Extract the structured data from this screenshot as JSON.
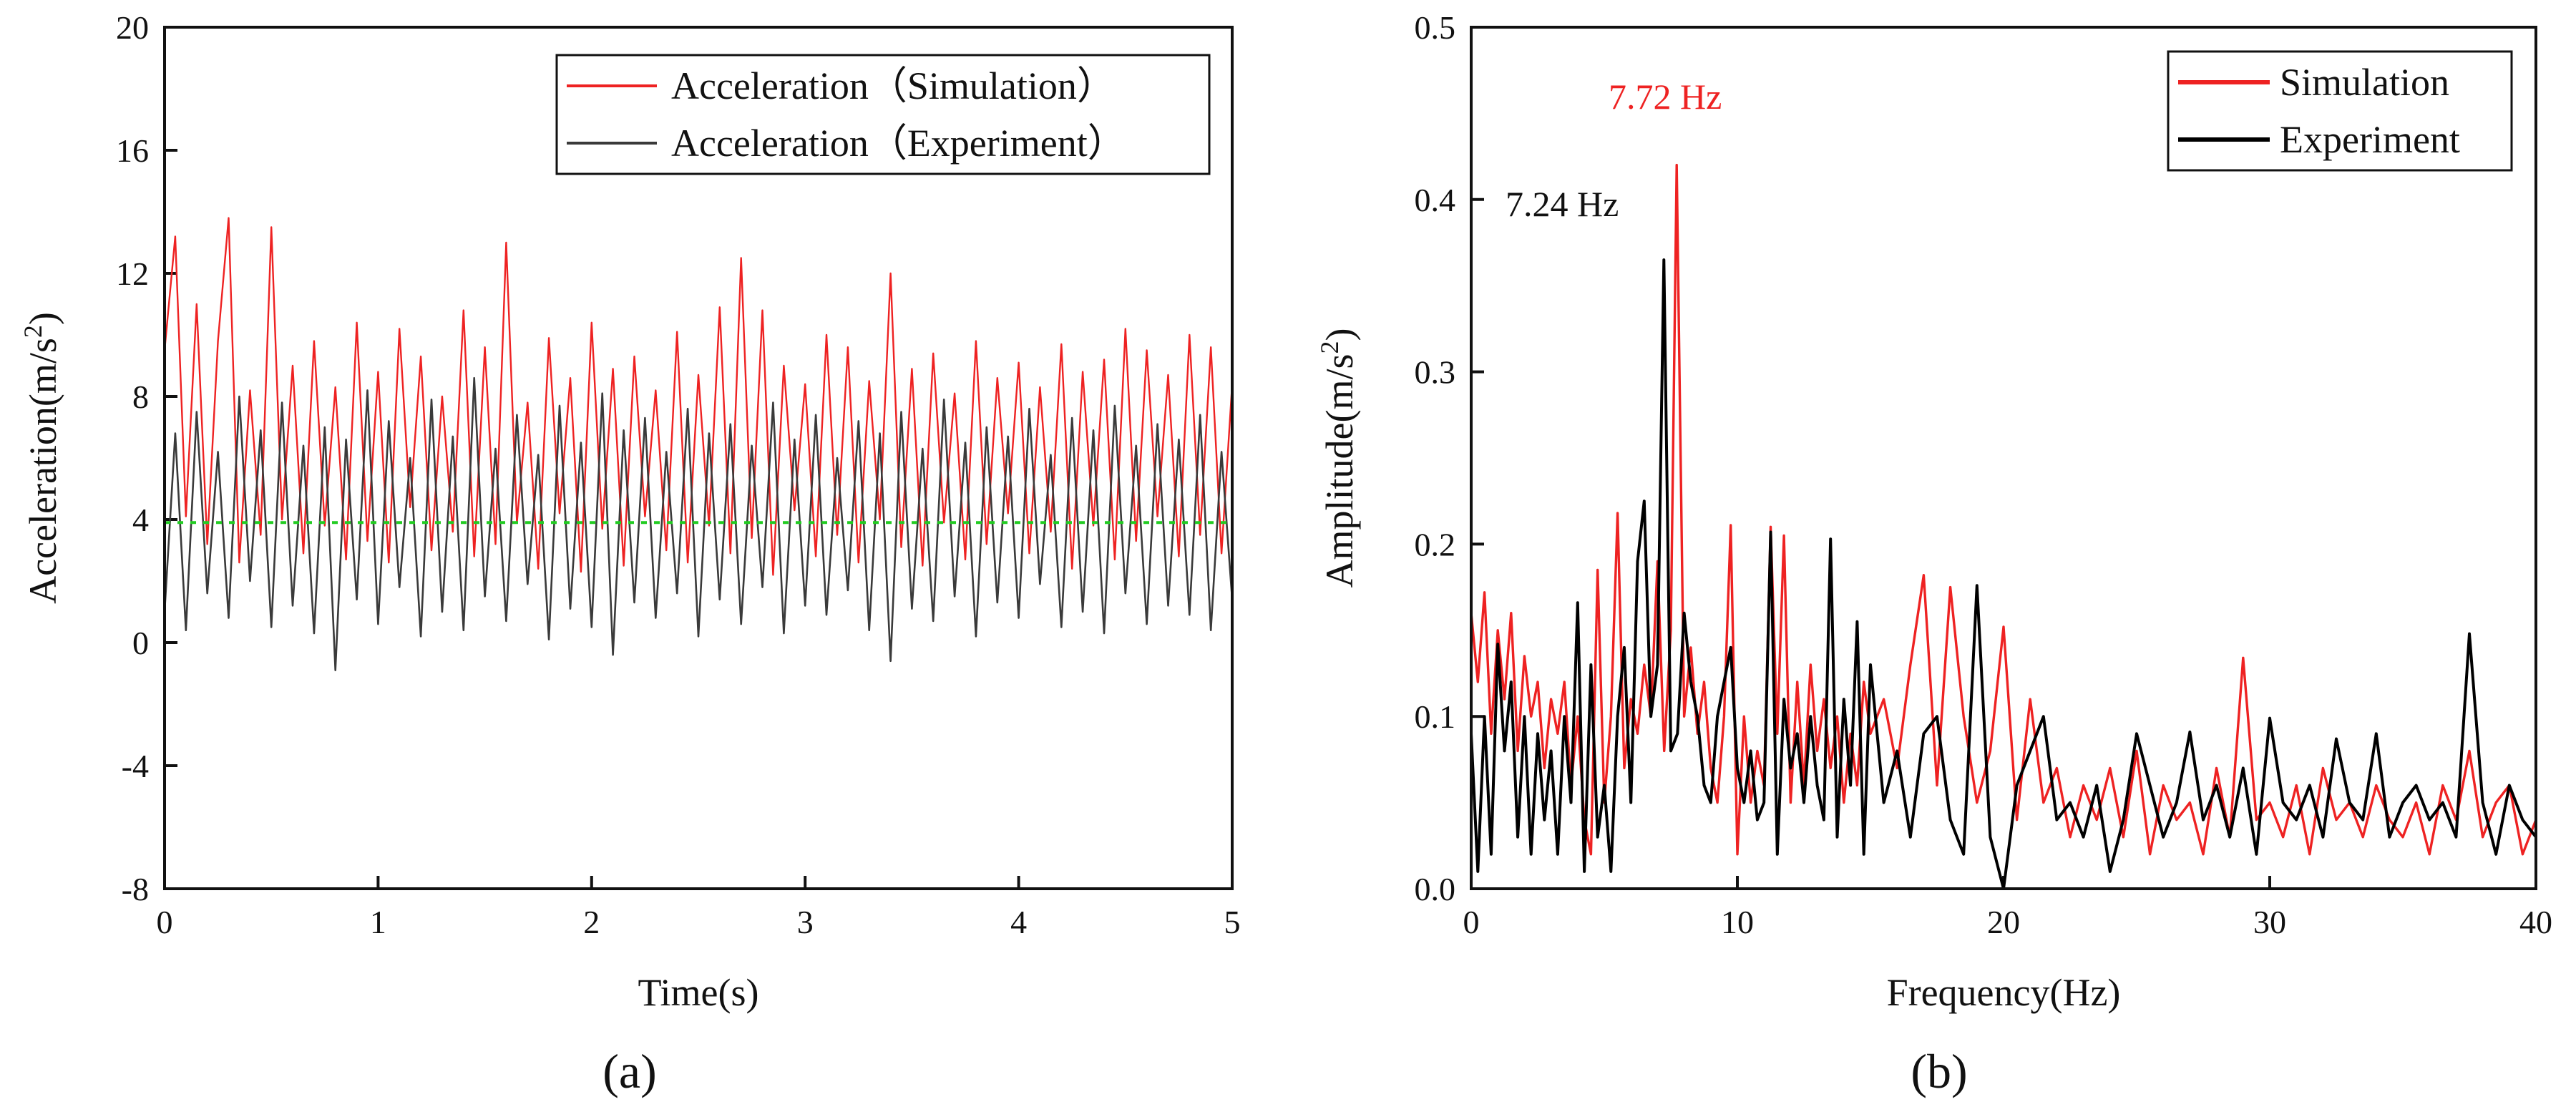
{
  "panel_labels": {
    "a": "(a)",
    "b": "(b)"
  },
  "colors": {
    "simulation": "#ee2222",
    "experiment_a": "#3a3a3a",
    "experiment_b": "#000000",
    "mean_line": "#22cc22",
    "axis": "#111111"
  },
  "chart_data": [
    {
      "id": "a",
      "type": "line",
      "title": "",
      "xlabel": "Time(s)",
      "ylabel": "Acceleration(m/s²)",
      "xlim": [
        0,
        5
      ],
      "ylim": [
        -8,
        20
      ],
      "xticks": [
        0,
        1,
        2,
        3,
        4,
        5
      ],
      "yticks": [
        -8,
        -4,
        0,
        4,
        8,
        12,
        16,
        20
      ],
      "legend_position": "top-right",
      "reference_line": {
        "y": 3.9,
        "style": "dotted"
      },
      "series": [
        {
          "name": "Acceleration（Simulation）",
          "color": "#ee2222",
          "x": [
            0,
            0.05,
            0.1,
            0.15,
            0.2,
            0.25,
            0.3,
            0.35,
            0.4,
            0.45,
            0.5,
            0.55,
            0.6,
            0.65,
            0.7,
            0.75,
            0.8,
            0.85,
            0.9,
            0.95,
            1.0,
            1.05,
            1.1,
            1.15,
            1.2,
            1.25,
            1.3,
            1.35,
            1.4,
            1.45,
            1.5,
            1.55,
            1.6,
            1.65,
            1.7,
            1.75,
            1.8,
            1.85,
            1.9,
            1.95,
            2.0,
            2.05,
            2.1,
            2.15,
            2.2,
            2.25,
            2.3,
            2.35,
            2.4,
            2.45,
            2.5,
            2.55,
            2.6,
            2.65,
            2.7,
            2.75,
            2.8,
            2.85,
            2.9,
            2.95,
            3.0,
            3.05,
            3.1,
            3.15,
            3.2,
            3.25,
            3.3,
            3.35,
            3.4,
            3.45,
            3.5,
            3.55,
            3.6,
            3.65,
            3.7,
            3.75,
            3.8,
            3.85,
            3.9,
            3.95,
            4.0,
            4.05,
            4.1,
            4.15,
            4.2,
            4.25,
            4.3,
            4.35,
            4.4,
            4.45,
            4.5,
            4.55,
            4.6,
            4.65,
            4.7,
            4.75,
            4.8,
            4.85,
            4.9,
            4.95,
            5.0
          ],
          "y": [
            9.5,
            13.2,
            4.1,
            11.0,
            3.2,
            9.8,
            13.8,
            2.6,
            8.2,
            3.5,
            13.5,
            4.0,
            9.0,
            2.9,
            9.8,
            3.8,
            8.3,
            2.7,
            10.4,
            3.3,
            8.8,
            2.6,
            10.2,
            4.4,
            9.3,
            3.0,
            8.0,
            3.6,
            10.8,
            2.8,
            9.6,
            3.2,
            13.0,
            3.9,
            7.8,
            2.4,
            9.9,
            4.2,
            8.6,
            2.3,
            10.4,
            3.7,
            8.9,
            2.5,
            9.3,
            4.1,
            8.2,
            3.0,
            10.1,
            2.6,
            8.7,
            3.8,
            10.9,
            2.9,
            12.5,
            3.4,
            10.8,
            2.2,
            9.0,
            4.3,
            8.4,
            2.8,
            10.0,
            3.5,
            9.6,
            2.6,
            8.5,
            4.0,
            12.0,
            3.1,
            8.9,
            2.5,
            9.4,
            3.9,
            8.1,
            2.7,
            9.8,
            3.2,
            8.6,
            4.2,
            9.1,
            2.9,
            8.3,
            3.6,
            9.7,
            2.4,
            8.8,
            3.8,
            9.2,
            2.7,
            10.2,
            3.3,
            9.5,
            4.1,
            8.7,
            2.8,
            10.0,
            3.5,
            9.6,
            2.9,
            8.4
          ]
        },
        {
          "name": "Acceleration（Experiment）",
          "color": "#3a3a3a",
          "x": [
            0,
            0.05,
            0.1,
            0.15,
            0.2,
            0.25,
            0.3,
            0.35,
            0.4,
            0.45,
            0.5,
            0.55,
            0.6,
            0.65,
            0.7,
            0.75,
            0.8,
            0.85,
            0.9,
            0.95,
            1.0,
            1.05,
            1.1,
            1.15,
            1.2,
            1.25,
            1.3,
            1.35,
            1.4,
            1.45,
            1.5,
            1.55,
            1.6,
            1.65,
            1.7,
            1.75,
            1.8,
            1.85,
            1.9,
            1.95,
            2.0,
            2.05,
            2.1,
            2.15,
            2.2,
            2.25,
            2.3,
            2.35,
            2.4,
            2.45,
            2.5,
            2.55,
            2.6,
            2.65,
            2.7,
            2.75,
            2.8,
            2.85,
            2.9,
            2.95,
            3.0,
            3.05,
            3.1,
            3.15,
            3.2,
            3.25,
            3.3,
            3.35,
            3.4,
            3.45,
            3.5,
            3.55,
            3.6,
            3.65,
            3.7,
            3.75,
            3.8,
            3.85,
            3.9,
            3.95,
            4.0,
            4.05,
            4.1,
            4.15,
            4.2,
            4.25,
            4.3,
            4.35,
            4.4,
            4.45,
            4.5,
            4.55,
            4.6,
            4.65,
            4.7,
            4.75,
            4.8,
            4.85,
            4.9,
            4.95,
            5.0
          ],
          "y": [
            1.0,
            6.8,
            0.4,
            7.5,
            1.6,
            6.2,
            0.8,
            8.0,
            2.0,
            6.9,
            0.5,
            7.8,
            1.2,
            6.4,
            0.3,
            7.0,
            -0.9,
            6.6,
            1.4,
            8.2,
            0.6,
            7.2,
            1.8,
            6.0,
            0.2,
            7.9,
            1.0,
            6.7,
            0.4,
            8.6,
            1.5,
            6.3,
            0.7,
            7.4,
            1.9,
            6.1,
            0.1,
            7.7,
            1.1,
            6.5,
            0.5,
            8.1,
            -0.4,
            6.9,
            1.3,
            7.3,
            0.8,
            6.2,
            1.6,
            7.6,
            0.2,
            6.8,
            1.4,
            7.1,
            0.6,
            6.4,
            1.8,
            7.8,
            0.3,
            6.6,
            1.2,
            7.4,
            0.9,
            6.0,
            1.7,
            7.2,
            0.4,
            6.8,
            -0.6,
            7.5,
            1.1,
            6.3,
            0.7,
            7.9,
            1.5,
            6.5,
            0.2,
            7.0,
            1.3,
            6.7,
            0.8,
            7.6,
            1.9,
            6.1,
            0.5,
            7.3,
            1.0,
            6.9,
            0.3,
            7.7,
            1.6,
            6.4,
            0.6,
            7.1,
            1.2,
            6.6,
            0.9,
            7.4,
            0.4,
            6.2,
            1.4
          ]
        }
      ]
    },
    {
      "id": "b",
      "type": "line",
      "title": "",
      "xlabel": "Frequency(Hz)",
      "ylabel": "Amplitude(m/s²)",
      "xlim": [
        0,
        40
      ],
      "ylim": [
        0,
        0.5
      ],
      "xticks": [
        0,
        10,
        20,
        30,
        40
      ],
      "yticks": [
        0.0,
        0.1,
        0.2,
        0.3,
        0.4,
        0.5
      ],
      "ytick_labels": [
        "0.0",
        "0.1",
        "0.2",
        "0.3",
        "0.4",
        "0.5"
      ],
      "legend_position": "top-right",
      "annotations": [
        {
          "text": "7.72 Hz",
          "x": 7.72,
          "y": 0.42,
          "color": "#ee2222"
        },
        {
          "text": "7.24 Hz",
          "x": 7.24,
          "y": 0.365,
          "color": "#111111"
        }
      ],
      "series": [
        {
          "name": "Simulation",
          "color": "#ee2222",
          "x": [
            0,
            0.25,
            0.5,
            0.75,
            1.0,
            1.25,
            1.5,
            1.75,
            2.0,
            2.25,
            2.5,
            2.75,
            3.0,
            3.25,
            3.5,
            3.75,
            4.0,
            4.25,
            4.5,
            4.75,
            5.0,
            5.25,
            5.5,
            5.75,
            6.0,
            6.25,
            6.5,
            6.75,
            7.0,
            7.25,
            7.5,
            7.72,
            8.0,
            8.25,
            8.5,
            8.75,
            9.0,
            9.25,
            9.5,
            9.75,
            10.0,
            10.25,
            10.5,
            10.75,
            11.0,
            11.25,
            11.5,
            11.75,
            12.0,
            12.25,
            12.5,
            12.75,
            13.0,
            13.25,
            13.5,
            13.75,
            14.0,
            14.25,
            14.5,
            14.75,
            15.0,
            15.5,
            16.0,
            16.5,
            17.0,
            17.5,
            18.0,
            18.5,
            19.0,
            19.5,
            20.0,
            20.5,
            21.0,
            21.5,
            22.0,
            22.5,
            23.0,
            23.5,
            24.0,
            24.5,
            25.0,
            25.5,
            26.0,
            26.5,
            27.0,
            27.5,
            28.0,
            28.5,
            29.0,
            29.5,
            30.0,
            30.5,
            31.0,
            31.5,
            32.0,
            32.5,
            33.0,
            33.5,
            34.0,
            34.5,
            35.0,
            35.5,
            36.0,
            36.5,
            37.0,
            37.5,
            38.0,
            38.5,
            39.0,
            39.5,
            40.0
          ],
          "y": [
            0.16,
            0.12,
            0.172,
            0.09,
            0.15,
            0.11,
            0.16,
            0.08,
            0.135,
            0.1,
            0.12,
            0.07,
            0.11,
            0.09,
            0.12,
            0.06,
            0.1,
            0.04,
            0.02,
            0.185,
            0.05,
            0.1,
            0.218,
            0.07,
            0.11,
            0.09,
            0.13,
            0.1,
            0.19,
            0.08,
            0.15,
            0.42,
            0.1,
            0.14,
            0.09,
            0.12,
            0.07,
            0.05,
            0.1,
            0.211,
            0.02,
            0.1,
            0.05,
            0.08,
            0.06,
            0.21,
            0.09,
            0.205,
            0.05,
            0.12,
            0.06,
            0.13,
            0.08,
            0.11,
            0.07,
            0.1,
            0.05,
            0.09,
            0.06,
            0.12,
            0.09,
            0.11,
            0.07,
            0.13,
            0.182,
            0.06,
            0.175,
            0.1,
            0.05,
            0.08,
            0.152,
            0.04,
            0.11,
            0.05,
            0.07,
            0.03,
            0.06,
            0.04,
            0.07,
            0.03,
            0.08,
            0.02,
            0.06,
            0.04,
            0.05,
            0.02,
            0.07,
            0.03,
            0.134,
            0.04,
            0.05,
            0.03,
            0.06,
            0.02,
            0.07,
            0.04,
            0.05,
            0.03,
            0.06,
            0.04,
            0.03,
            0.05,
            0.02,
            0.06,
            0.04,
            0.08,
            0.03,
            0.05,
            0.06,
            0.02,
            0.04
          ]
        },
        {
          "name": "Experiment",
          "color": "#000000",
          "x": [
            0,
            0.25,
            0.5,
            0.75,
            1.0,
            1.25,
            1.5,
            1.75,
            2.0,
            2.25,
            2.5,
            2.75,
            3.0,
            3.25,
            3.5,
            3.75,
            4.0,
            4.25,
            4.5,
            4.75,
            5.0,
            5.25,
            5.5,
            5.75,
            6.0,
            6.25,
            6.5,
            6.75,
            7.0,
            7.24,
            7.5,
            7.75,
            8.0,
            8.25,
            8.5,
            8.75,
            9.0,
            9.25,
            9.5,
            9.75,
            10.0,
            10.25,
            10.5,
            10.75,
            11.0,
            11.25,
            11.5,
            11.75,
            12.0,
            12.25,
            12.5,
            12.75,
            13.0,
            13.25,
            13.5,
            13.75,
            14.0,
            14.25,
            14.5,
            14.75,
            15.0,
            15.5,
            16.0,
            16.5,
            17.0,
            17.5,
            18.0,
            18.5,
            19.0,
            19.5,
            20.0,
            20.5,
            21.0,
            21.5,
            22.0,
            22.5,
            23.0,
            23.5,
            24.0,
            24.5,
            25.0,
            25.5,
            26.0,
            26.5,
            27.0,
            27.5,
            28.0,
            28.5,
            29.0,
            29.5,
            30.0,
            30.5,
            31.0,
            31.5,
            32.0,
            32.5,
            33.0,
            33.5,
            34.0,
            34.5,
            35.0,
            35.5,
            36.0,
            36.5,
            37.0,
            37.5,
            38.0,
            38.5,
            39.0,
            39.5,
            40.0
          ],
          "y": [
            0.09,
            0.01,
            0.1,
            0.02,
            0.142,
            0.08,
            0.12,
            0.03,
            0.1,
            0.02,
            0.09,
            0.04,
            0.08,
            0.02,
            0.1,
            0.05,
            0.166,
            0.01,
            0.13,
            0.03,
            0.06,
            0.01,
            0.1,
            0.14,
            0.05,
            0.19,
            0.225,
            0.1,
            0.13,
            0.365,
            0.08,
            0.09,
            0.16,
            0.12,
            0.1,
            0.06,
            0.05,
            0.1,
            0.12,
            0.14,
            0.07,
            0.05,
            0.08,
            0.04,
            0.05,
            0.207,
            0.02,
            0.11,
            0.07,
            0.09,
            0.05,
            0.1,
            0.06,
            0.04,
            0.203,
            0.03,
            0.11,
            0.06,
            0.155,
            0.02,
            0.13,
            0.05,
            0.08,
            0.03,
            0.09,
            0.1,
            0.04,
            0.02,
            0.176,
            0.03,
            0.0,
            0.06,
            0.08,
            0.1,
            0.04,
            0.05,
            0.03,
            0.06,
            0.01,
            0.04,
            0.09,
            0.06,
            0.03,
            0.05,
            0.091,
            0.04,
            0.06,
            0.03,
            0.07,
            0.02,
            0.099,
            0.05,
            0.04,
            0.06,
            0.03,
            0.087,
            0.05,
            0.04,
            0.09,
            0.03,
            0.05,
            0.06,
            0.04,
            0.05,
            0.03,
            0.148,
            0.05,
            0.02,
            0.06,
            0.04,
            0.03
          ]
        }
      ]
    }
  ]
}
